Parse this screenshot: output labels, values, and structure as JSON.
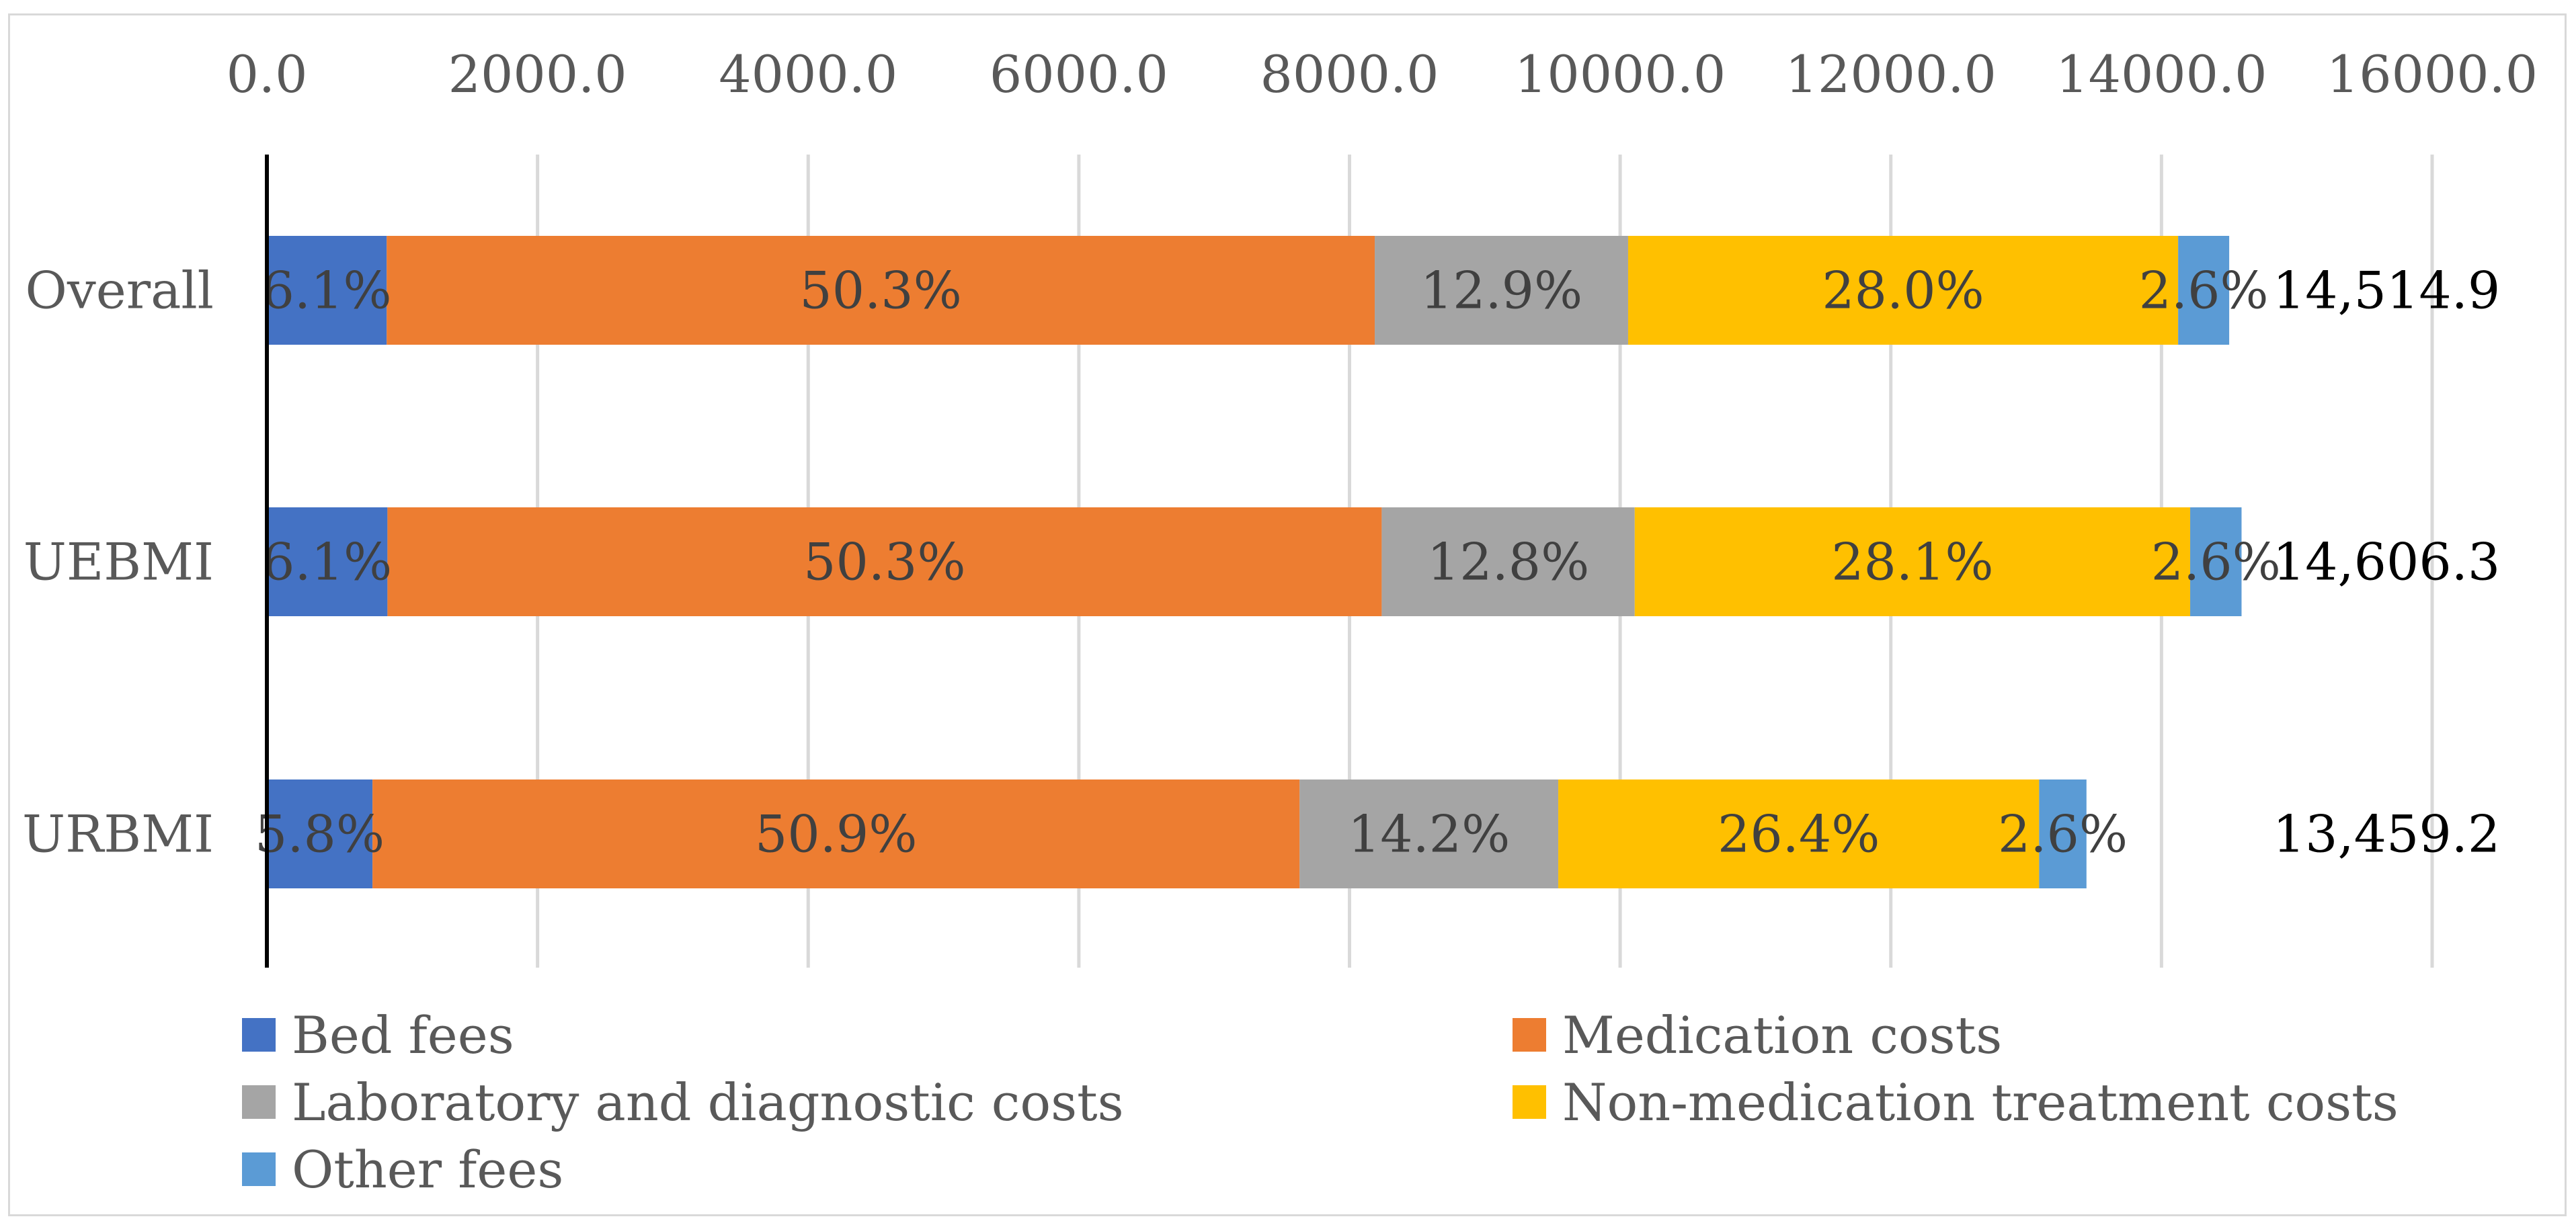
{
  "chart_data": {
    "type": "bar",
    "orientation": "horizontal",
    "stacked": true,
    "categories": [
      "Overall",
      "UEBMI",
      "URBMI"
    ],
    "totals": [
      "14,514.9",
      "14,606.3",
      "13,459.2"
    ],
    "total_values": [
      14514.9,
      14606.3,
      13459.2
    ],
    "series": [
      {
        "name": "Bed fees",
        "color": "#4472c4",
        "labels": [
          "6.1%",
          "6.1%",
          "5.8%"
        ],
        "percent": [
          6.1,
          6.1,
          5.8
        ]
      },
      {
        "name": "Medication costs",
        "color": "#ed7d31",
        "labels": [
          "50.3%",
          "50.3%",
          "50.9%"
        ],
        "percent": [
          50.3,
          50.3,
          50.9
        ]
      },
      {
        "name": "Laboratory and diagnostic costs",
        "color": "#a5a5a5",
        "labels": [
          "12.9%",
          "12.8%",
          "14.2%"
        ],
        "percent": [
          12.9,
          12.8,
          14.2
        ]
      },
      {
        "name": "Non-medication treatment costs",
        "color": "#ffc000",
        "labels": [
          "28.0%",
          "28.1%",
          "26.4%"
        ],
        "percent": [
          28.0,
          28.1,
          26.4
        ]
      },
      {
        "name": "Other fees",
        "color": "#5b9bd5",
        "labels": [
          "2.6%",
          "2.6%",
          "2.6%"
        ],
        "percent": [
          2.6,
          2.6,
          2.6
        ]
      }
    ],
    "x_ticks": [
      "0.0",
      "2000.0",
      "4000.0",
      "6000.0",
      "8000.0",
      "10000.0",
      "12000.0",
      "14000.0",
      "16000.0"
    ],
    "xlim": [
      0,
      16000
    ],
    "x_axis_position": "top",
    "grid": true,
    "legend_position": "bottom",
    "title": "",
    "xlabel": "",
    "ylabel": ""
  }
}
